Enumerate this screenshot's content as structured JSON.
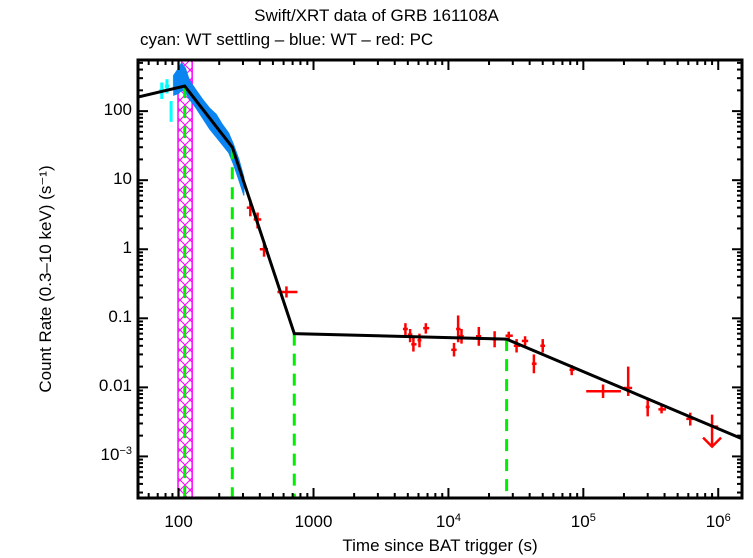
{
  "chart_data": {
    "type": "scatter",
    "title": "Swift/XRT data of GRB 161108A",
    "subtitle": "cyan: WT settling – blue: WT – red: PC",
    "xlabel": "Time since BAT trigger (s)",
    "ylabel": "Count Rate (0.3–10 keV) (s⁻¹)",
    "xscale": "log",
    "yscale": "log",
    "xlim": [
      50,
      1500000
    ],
    "ylim": [
      0.00025,
      550
    ],
    "grid": false,
    "x_ticks": [
      {
        "value": 100,
        "base": "100",
        "exp": ""
      },
      {
        "value": 1000,
        "base": "1000",
        "exp": ""
      },
      {
        "value": 10000,
        "base": "10",
        "exp": "4"
      },
      {
        "value": 100000,
        "base": "10",
        "exp": "5"
      },
      {
        "value": 1000000,
        "base": "10",
        "exp": "6"
      }
    ],
    "y_ticks": [
      {
        "value": 100,
        "base": "100",
        "exp": ""
      },
      {
        "value": 10,
        "base": "10",
        "exp": ""
      },
      {
        "value": 1,
        "base": "1",
        "exp": ""
      },
      {
        "value": 0.1,
        "base": "0.1",
        "exp": ""
      },
      {
        "value": 0.01,
        "base": "0.01",
        "exp": ""
      },
      {
        "value": 0.001,
        "base": "10",
        "exp": "−3"
      }
    ],
    "colors": {
      "wt_settling": "#00ffff",
      "wt": "#0a84f0",
      "pc": "#ff0000",
      "model": "#000000",
      "breaks": "#00ee00",
      "flare_box": "#ff00ff"
    },
    "series": [
      {
        "name": "WT settling",
        "color": "cyan",
        "points": [
          {
            "x": 75,
            "y": 200,
            "xerr": [
              72,
              78
            ],
            "yerr": [
              150,
              260
            ]
          },
          {
            "x": 82,
            "y": 230,
            "xerr": [
              79,
              85
            ],
            "yerr": [
              180,
              290
            ]
          },
          {
            "x": 88,
            "y": 100,
            "xerr": [
              86,
              90
            ],
            "yerr": [
              70,
              140
            ]
          },
          {
            "x": 93,
            "y": 260,
            "xerr": [
              91,
              96
            ],
            "yerr": [
              200,
              330
            ]
          }
        ]
      },
      {
        "name": "WT",
        "color": "blue",
        "band": [
          {
            "x": 92,
            "lo": 170,
            "hi": 330
          },
          {
            "x": 100,
            "lo": 180,
            "hi": 420
          },
          {
            "x": 105,
            "lo": 200,
            "hi": 500
          },
          {
            "x": 112,
            "lo": 190,
            "hi": 420
          },
          {
            "x": 120,
            "lo": 150,
            "hi": 280
          },
          {
            "x": 135,
            "lo": 110,
            "hi": 200
          },
          {
            "x": 150,
            "lo": 80,
            "hi": 150
          },
          {
            "x": 170,
            "lo": 55,
            "hi": 110
          },
          {
            "x": 190,
            "lo": 42,
            "hi": 90
          },
          {
            "x": 210,
            "lo": 33,
            "hi": 65
          },
          {
            "x": 235,
            "lo": 25,
            "hi": 48
          },
          {
            "x": 255,
            "lo": 17,
            "hi": 33
          },
          {
            "x": 280,
            "lo": 10,
            "hi": 20
          },
          {
            "x": 305,
            "lo": 6,
            "hi": 11
          }
        ]
      },
      {
        "name": "PC",
        "color": "red",
        "points": [
          {
            "x": 340,
            "y": 4.0,
            "xerr": [
              320,
              360
            ],
            "yerr": [
              3.0,
              5.2
            ]
          },
          {
            "x": 385,
            "y": 2.7,
            "xerr": [
              360,
              410
            ],
            "yerr": [
              2.0,
              3.4
            ]
          },
          {
            "x": 430,
            "y": 1.0,
            "xerr": [
              400,
              460
            ],
            "yerr": [
              0.78,
              1.3
            ]
          },
          {
            "x": 630,
            "y": 0.24,
            "xerr": [
              540,
              760
            ],
            "yerr": [
              0.2,
              0.29
            ]
          },
          {
            "x": 4800,
            "y": 0.07,
            "xerr": [
              4600,
              5000
            ],
            "yerr": [
              0.055,
              0.085
            ]
          },
          {
            "x": 5200,
            "y": 0.058,
            "xerr": [
              5000,
              5400
            ],
            "yerr": [
              0.045,
              0.07
            ]
          },
          {
            "x": 5500,
            "y": 0.042,
            "xerr": [
              5300,
              5800
            ],
            "yerr": [
              0.033,
              0.052
            ]
          },
          {
            "x": 6100,
            "y": 0.048,
            "xerr": [
              5900,
              6300
            ],
            "yerr": [
              0.038,
              0.06
            ]
          },
          {
            "x": 6800,
            "y": 0.072,
            "xerr": [
              6500,
              7200
            ],
            "yerr": [
              0.06,
              0.085
            ]
          },
          {
            "x": 11000,
            "y": 0.035,
            "xerr": [
              10500,
              11500
            ],
            "yerr": [
              0.028,
              0.044
            ]
          },
          {
            "x": 11800,
            "y": 0.07,
            "xerr": [
              11400,
              12300
            ],
            "yerr": [
              0.045,
              0.11
            ]
          },
          {
            "x": 12500,
            "y": 0.055,
            "xerr": [
              12000,
              13000
            ],
            "yerr": [
              0.043,
              0.07
            ]
          },
          {
            "x": 16800,
            "y": 0.055,
            "xerr": [
              16000,
              17500
            ],
            "yerr": [
              0.04,
              0.075
            ]
          },
          {
            "x": 22000,
            "y": 0.05,
            "xerr": [
              21000,
              23000
            ],
            "yerr": [
              0.038,
              0.065
            ]
          },
          {
            "x": 28000,
            "y": 0.056,
            "xerr": [
              26500,
              30000
            ],
            "yerr": [
              0.05,
              0.064
            ]
          },
          {
            "x": 32000,
            "y": 0.04,
            "xerr": [
              30500,
              34000
            ],
            "yerr": [
              0.032,
              0.05
            ]
          },
          {
            "x": 37000,
            "y": 0.047,
            "xerr": [
              35000,
              39000
            ],
            "yerr": [
              0.04,
              0.055
            ]
          },
          {
            "x": 43000,
            "y": 0.022,
            "xerr": [
              41500,
              45000
            ],
            "yerr": [
              0.016,
              0.03
            ]
          },
          {
            "x": 50000,
            "y": 0.04,
            "xerr": [
              48000,
              52000
            ],
            "yerr": [
              0.032,
              0.05
            ]
          },
          {
            "x": 82000,
            "y": 0.018,
            "xerr": [
              79000,
              86000
            ],
            "yerr": [
              0.015,
              0.021
            ]
          },
          {
            "x": 140000,
            "y": 0.0088,
            "xerr": [
              105000,
              190000
            ],
            "yerr": [
              0.007,
              0.011
            ]
          },
          {
            "x": 215000,
            "y": 0.0098,
            "xerr": [
              200000,
              230000
            ],
            "yerr": [
              0.0075,
              0.02
            ]
          },
          {
            "x": 300000,
            "y": 0.0052,
            "xerr": [
              290000,
              310000
            ],
            "yerr": [
              0.0038,
              0.0066
            ]
          },
          {
            "x": 380000,
            "y": 0.0048,
            "xerr": [
              360000,
              410000
            ],
            "yerr": [
              0.0042,
              0.0056
            ]
          },
          {
            "x": 620000,
            "y": 0.0035,
            "xerr": [
              580000,
              660000
            ],
            "yerr": [
              0.0028,
              0.0043
            ]
          }
        ],
        "upper_limits": [
          {
            "x": 900000,
            "y": 0.0027,
            "xerr": [
              880000,
              1000000
            ]
          }
        ]
      }
    ],
    "model": {
      "name": "broken power-law fit",
      "points": [
        [
          50,
          160
        ],
        [
          111,
          230
        ],
        [
          250,
          30
        ],
        [
          720,
          0.06
        ],
        [
          27000,
          0.05
        ],
        [
          1500000,
          0.0018
        ]
      ]
    },
    "break_lines": [
      111,
      250,
      720,
      27000
    ],
    "excluded_interval": [
      99,
      126
    ]
  }
}
